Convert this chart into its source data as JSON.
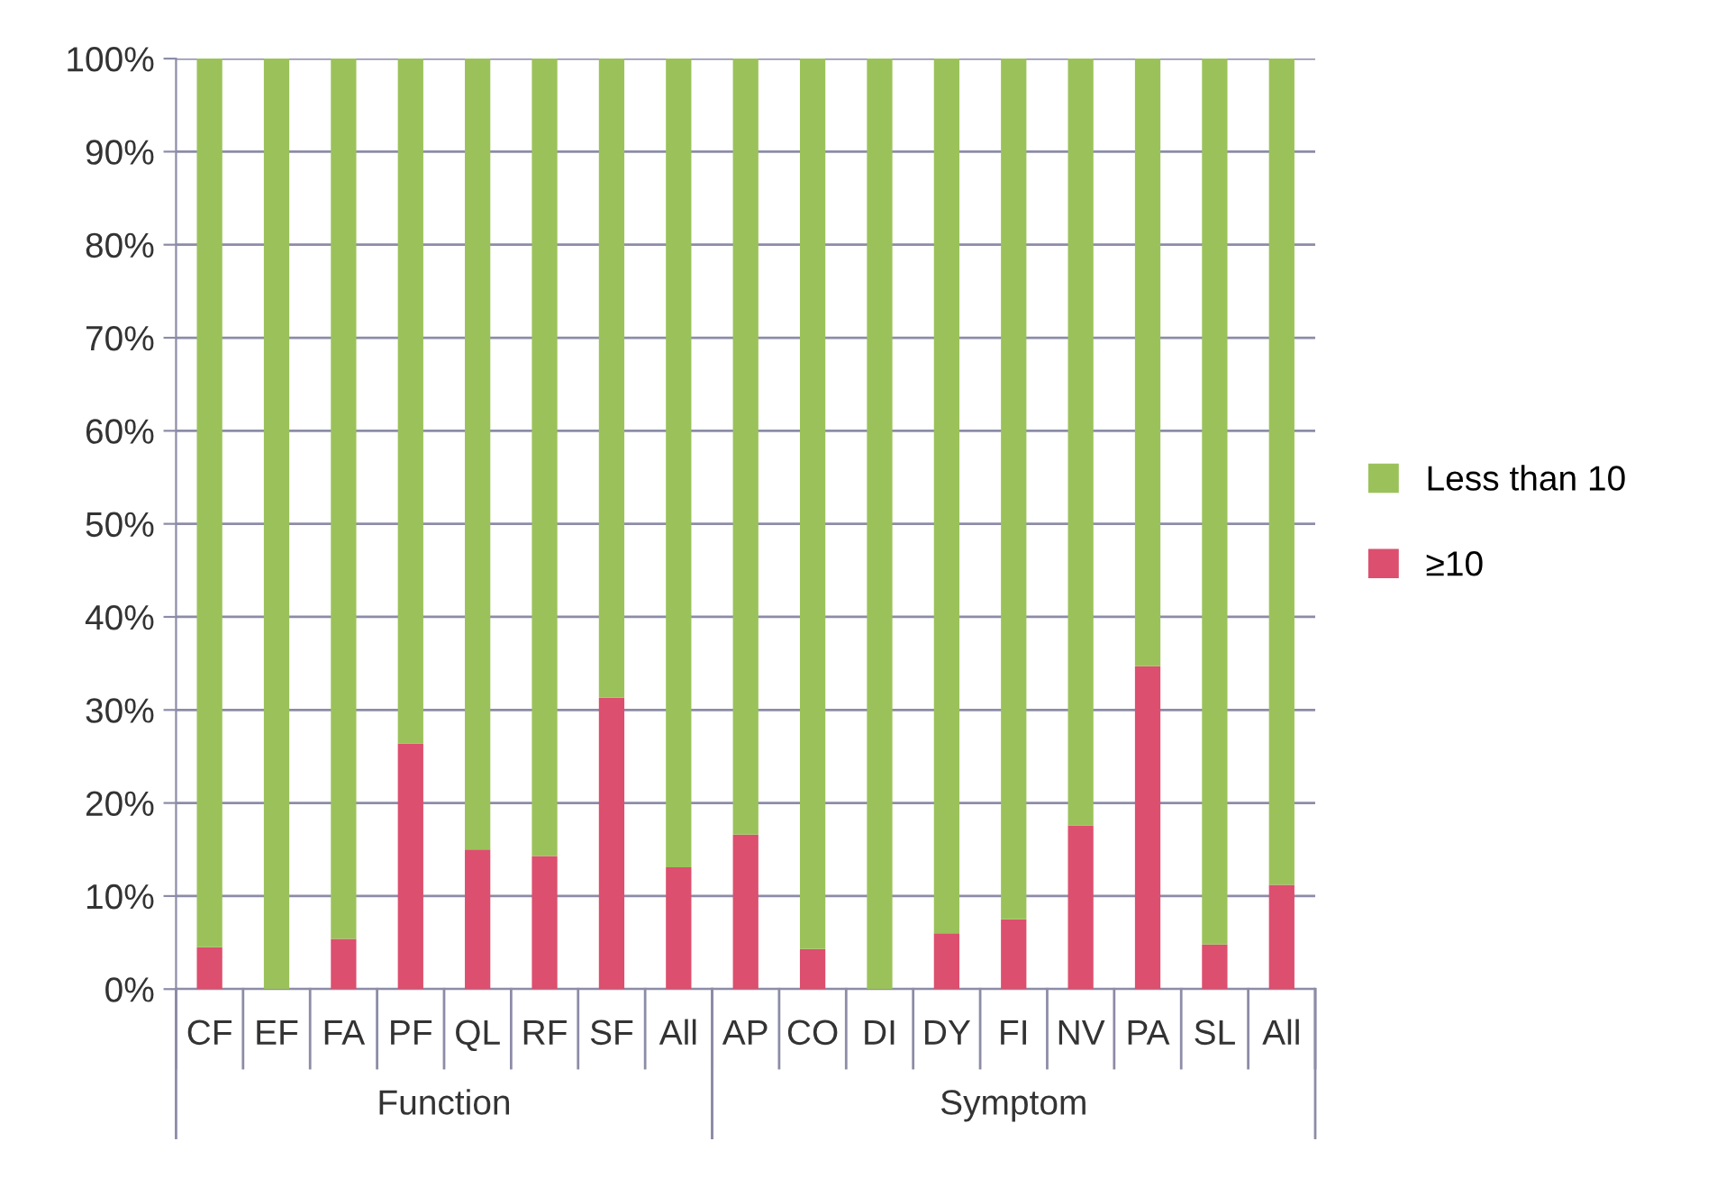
{
  "chart_data": {
    "type": "bar",
    "stacked": true,
    "categories": [
      "CF",
      "EF",
      "FA",
      "PF",
      "QL",
      "RF",
      "SF",
      "All",
      "AP",
      "CO",
      "DI",
      "DY",
      "FI",
      "NV",
      "PA",
      "SL",
      "All"
    ],
    "series": [
      {
        "name": "≥10",
        "color": "#dc4f6e",
        "values": [
          4.5,
          0,
          5.4,
          26.4,
          15.0,
          14.3,
          31.3,
          13.1,
          16.6,
          4.3,
          0,
          6.0,
          7.5,
          17.6,
          34.7,
          4.8,
          11.2
        ]
      },
      {
        "name": "Less than 10",
        "color": "#9bc25a",
        "values": [
          95.5,
          100,
          94.6,
          73.6,
          85.0,
          85.7,
          68.7,
          86.9,
          83.4,
          95.7,
          100,
          94.0,
          92.5,
          82.4,
          65.3,
          95.2,
          88.8
        ]
      }
    ],
    "ylim": [
      0,
      100
    ],
    "yticks": [
      {
        "value": 0,
        "label": "0%"
      },
      {
        "value": 10,
        "label": "10%"
      },
      {
        "value": 20,
        "label": "20%"
      },
      {
        "value": 30,
        "label": "30%"
      },
      {
        "value": 40,
        "label": "40%"
      },
      {
        "value": 50,
        "label": "50%"
      },
      {
        "value": 60,
        "label": "60%"
      },
      {
        "value": 70,
        "label": "70%"
      },
      {
        "value": 80,
        "label": "80%"
      },
      {
        "value": 90,
        "label": "90%"
      },
      {
        "value": 100,
        "label": "100%"
      }
    ],
    "grid": "y",
    "legend": "right",
    "annotations": [
      "Function",
      "Symptom"
    ]
  }
}
